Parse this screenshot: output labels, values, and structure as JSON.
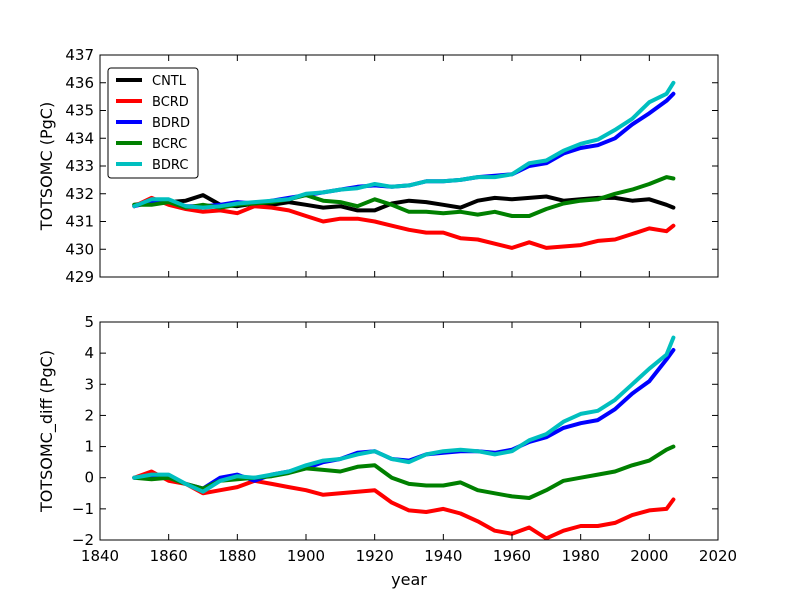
{
  "chart_data": [
    {
      "type": "line",
      "ylabel": "TOTSOMC (PgC)",
      "xlabel": "",
      "xlim": [
        1840,
        2020
      ],
      "ylim": [
        429,
        437
      ],
      "xticks": [
        1840,
        1860,
        1880,
        1900,
        1920,
        1940,
        1960,
        1980,
        2000,
        2020
      ],
      "yticks": [
        429,
        430,
        431,
        432,
        433,
        434,
        435,
        436,
        437
      ],
      "show_xtick_labels": false,
      "legend": "top-left",
      "series": [
        {
          "name": "CNTL",
          "color": "#000000",
          "x": [
            1850,
            1855,
            1860,
            1865,
            1870,
            1875,
            1880,
            1885,
            1890,
            1895,
            1900,
            1905,
            1910,
            1915,
            1920,
            1925,
            1930,
            1935,
            1940,
            1945,
            1950,
            1955,
            1960,
            1965,
            1970,
            1975,
            1980,
            1985,
            1990,
            1995,
            2000,
            2005,
            2007
          ],
          "y": [
            431.6,
            431.7,
            431.7,
            431.75,
            431.95,
            431.6,
            431.55,
            431.65,
            431.6,
            431.7,
            431.6,
            431.5,
            431.55,
            431.4,
            431.4,
            431.65,
            431.75,
            431.7,
            431.6,
            431.5,
            431.75,
            431.85,
            431.8,
            431.85,
            431.9,
            431.75,
            431.8,
            431.85,
            431.85,
            431.75,
            431.8,
            431.6,
            431.5
          ]
        },
        {
          "name": "BCRD",
          "color": "#ff0000",
          "x": [
            1850,
            1855,
            1860,
            1865,
            1870,
            1875,
            1880,
            1885,
            1890,
            1895,
            1900,
            1905,
            1910,
            1915,
            1920,
            1925,
            1930,
            1935,
            1940,
            1945,
            1950,
            1955,
            1960,
            1965,
            1970,
            1975,
            1980,
            1985,
            1990,
            1995,
            2000,
            2005,
            2007
          ],
          "y": [
            431.55,
            431.85,
            431.6,
            431.45,
            431.35,
            431.4,
            431.3,
            431.55,
            431.5,
            431.4,
            431.2,
            431.0,
            431.1,
            431.1,
            431.0,
            430.85,
            430.7,
            430.6,
            430.6,
            430.4,
            430.35,
            430.2,
            430.05,
            430.25,
            430.05,
            430.1,
            430.15,
            430.3,
            430.35,
            430.55,
            430.75,
            430.65,
            430.85
          ]
        },
        {
          "name": "BDRD",
          "color": "#0000ff",
          "x": [
            1850,
            1855,
            1860,
            1865,
            1870,
            1875,
            1880,
            1885,
            1890,
            1895,
            1900,
            1905,
            1910,
            1915,
            1920,
            1925,
            1930,
            1935,
            1940,
            1945,
            1950,
            1955,
            1960,
            1965,
            1970,
            1975,
            1980,
            1985,
            1990,
            1995,
            2000,
            2005,
            2007
          ],
          "y": [
            431.55,
            431.7,
            431.75,
            431.55,
            431.55,
            431.6,
            431.7,
            431.65,
            431.75,
            431.85,
            431.95,
            432.05,
            432.15,
            432.25,
            432.3,
            432.25,
            432.3,
            432.45,
            432.45,
            432.5,
            432.6,
            432.65,
            432.7,
            433.0,
            433.1,
            433.45,
            433.65,
            433.75,
            434.0,
            434.5,
            434.9,
            435.35,
            435.6
          ]
        },
        {
          "name": "BCRC",
          "color": "#008000",
          "x": [
            1850,
            1855,
            1860,
            1865,
            1870,
            1875,
            1880,
            1885,
            1890,
            1895,
            1900,
            1905,
            1910,
            1915,
            1920,
            1925,
            1930,
            1935,
            1940,
            1945,
            1950,
            1955,
            1960,
            1965,
            1970,
            1975,
            1980,
            1985,
            1990,
            1995,
            2000,
            2005,
            2007
          ],
          "y": [
            431.6,
            431.6,
            431.7,
            431.5,
            431.6,
            431.5,
            431.6,
            431.65,
            431.7,
            431.8,
            431.95,
            431.75,
            431.7,
            431.55,
            431.8,
            431.6,
            431.35,
            431.35,
            431.3,
            431.35,
            431.25,
            431.35,
            431.2,
            431.2,
            431.45,
            431.65,
            431.75,
            431.8,
            432.0,
            432.15,
            432.35,
            432.6,
            432.55
          ]
        },
        {
          "name": "BDRC",
          "color": "#00bfbf",
          "x": [
            1850,
            1855,
            1860,
            1865,
            1870,
            1875,
            1880,
            1885,
            1890,
            1895,
            1900,
            1905,
            1910,
            1915,
            1920,
            1925,
            1930,
            1935,
            1940,
            1945,
            1950,
            1955,
            1960,
            1965,
            1970,
            1975,
            1980,
            1985,
            1990,
            1995,
            2000,
            2005,
            2007
          ],
          "y": [
            431.55,
            431.8,
            431.8,
            431.55,
            431.5,
            431.55,
            431.65,
            431.7,
            431.75,
            431.8,
            432.0,
            432.05,
            432.15,
            432.2,
            432.35,
            432.25,
            432.3,
            432.45,
            432.45,
            432.5,
            432.6,
            432.6,
            432.7,
            433.1,
            433.2,
            433.55,
            433.8,
            433.95,
            434.3,
            434.7,
            435.3,
            435.6,
            436.0
          ]
        }
      ]
    },
    {
      "type": "line",
      "ylabel": "TOTSOMC_diff (PgC)",
      "xlabel": "year",
      "xlim": [
        1840,
        2020
      ],
      "ylim": [
        -2,
        5
      ],
      "xticks": [
        1840,
        1860,
        1880,
        1900,
        1920,
        1940,
        1960,
        1980,
        2000,
        2020
      ],
      "yticks": [
        -2,
        -1,
        0,
        1,
        2,
        3,
        4,
        5
      ],
      "show_xtick_labels": true,
      "series": [
        {
          "name": "BCRD",
          "color": "#ff0000",
          "x": [
            1850,
            1855,
            1860,
            1865,
            1870,
            1875,
            1880,
            1885,
            1890,
            1895,
            1900,
            1905,
            1910,
            1915,
            1920,
            1925,
            1930,
            1935,
            1940,
            1945,
            1950,
            1955,
            1960,
            1965,
            1970,
            1975,
            1980,
            1985,
            1990,
            1995,
            2000,
            2005,
            2007
          ],
          "y": [
            0.0,
            0.2,
            -0.1,
            -0.2,
            -0.5,
            -0.4,
            -0.3,
            -0.1,
            -0.2,
            -0.3,
            -0.4,
            -0.55,
            -0.5,
            -0.45,
            -0.4,
            -0.8,
            -1.05,
            -1.1,
            -1.0,
            -1.15,
            -1.4,
            -1.7,
            -1.8,
            -1.6,
            -1.95,
            -1.7,
            -1.55,
            -1.55,
            -1.45,
            -1.2,
            -1.05,
            -1.0,
            -0.7
          ]
        },
        {
          "name": "BDRD",
          "color": "#0000ff",
          "x": [
            1850,
            1855,
            1860,
            1865,
            1870,
            1875,
            1880,
            1885,
            1890,
            1895,
            1900,
            1905,
            1910,
            1915,
            1920,
            1925,
            1930,
            1935,
            1940,
            1945,
            1950,
            1955,
            1960,
            1965,
            1970,
            1975,
            1980,
            1985,
            1990,
            1995,
            2000,
            2005,
            2007
          ],
          "y": [
            0.0,
            0.0,
            0.05,
            -0.2,
            -0.35,
            0.0,
            0.1,
            -0.1,
            0.1,
            0.2,
            0.3,
            0.5,
            0.6,
            0.8,
            0.85,
            0.6,
            0.55,
            0.75,
            0.8,
            0.85,
            0.85,
            0.8,
            0.9,
            1.15,
            1.3,
            1.6,
            1.75,
            1.85,
            2.2,
            2.7,
            3.1,
            3.8,
            4.1
          ]
        },
        {
          "name": "BCRC",
          "color": "#008000",
          "x": [
            1850,
            1855,
            1860,
            1865,
            1870,
            1875,
            1880,
            1885,
            1890,
            1895,
            1900,
            1905,
            1910,
            1915,
            1920,
            1925,
            1930,
            1935,
            1940,
            1945,
            1950,
            1955,
            1960,
            1965,
            1970,
            1975,
            1980,
            1985,
            1990,
            1995,
            2000,
            2005,
            2007
          ],
          "y": [
            0.0,
            -0.05,
            0.0,
            -0.2,
            -0.35,
            -0.1,
            -0.05,
            0.0,
            0.05,
            0.15,
            0.3,
            0.25,
            0.2,
            0.35,
            0.4,
            0.0,
            -0.2,
            -0.25,
            -0.25,
            -0.15,
            -0.4,
            -0.5,
            -0.6,
            -0.65,
            -0.4,
            -0.1,
            0.0,
            0.1,
            0.2,
            0.4,
            0.55,
            0.9,
            1.0
          ]
        },
        {
          "name": "BDRC",
          "color": "#00bfbf",
          "x": [
            1850,
            1855,
            1860,
            1865,
            1870,
            1875,
            1880,
            1885,
            1890,
            1895,
            1900,
            1905,
            1910,
            1915,
            1920,
            1925,
            1930,
            1935,
            1940,
            1945,
            1950,
            1955,
            1960,
            1965,
            1970,
            1975,
            1980,
            1985,
            1990,
            1995,
            2000,
            2005,
            2007
          ],
          "y": [
            0.0,
            0.1,
            0.1,
            -0.2,
            -0.45,
            -0.1,
            0.05,
            0.0,
            0.1,
            0.2,
            0.4,
            0.55,
            0.6,
            0.75,
            0.85,
            0.6,
            0.5,
            0.75,
            0.85,
            0.9,
            0.85,
            0.75,
            0.85,
            1.2,
            1.4,
            1.8,
            2.05,
            2.15,
            2.5,
            3.0,
            3.5,
            3.95,
            4.5
          ]
        }
      ]
    }
  ]
}
